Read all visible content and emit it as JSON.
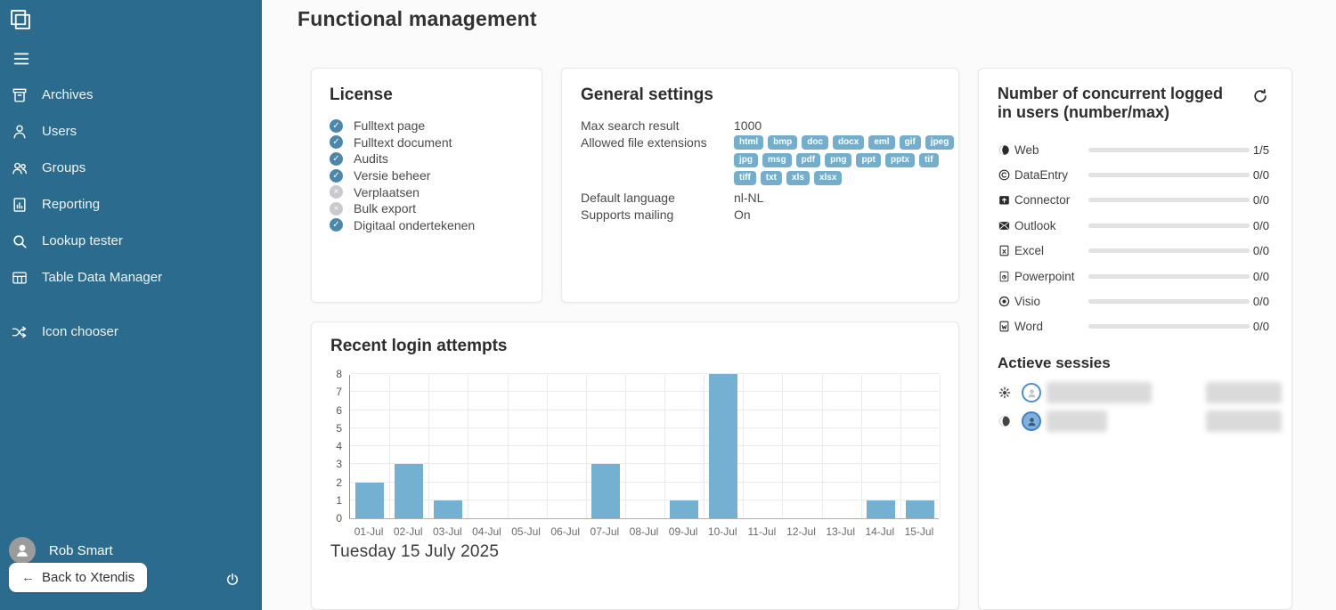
{
  "app": {
    "title": "Functional management"
  },
  "sidebar": {
    "menu": [
      {
        "id": "archives",
        "label": "Archives",
        "icon": "archive"
      },
      {
        "id": "users",
        "label": "Users",
        "icon": "user"
      },
      {
        "id": "groups",
        "label": "Groups",
        "icon": "group"
      },
      {
        "id": "reporting",
        "label": "Reporting",
        "icon": "report"
      },
      {
        "id": "lookup-tester",
        "label": "Lookup tester",
        "icon": "search"
      },
      {
        "id": "table-data-manager",
        "label": "Table Data Manager",
        "icon": "table"
      },
      {
        "id": "icon-chooser",
        "label": "Icon chooser",
        "icon": "shuffle",
        "gap_before": true
      }
    ],
    "user_name": "Rob Smart",
    "back_button_label": "Back to Xtendis",
    "back_button_arrow": "←"
  },
  "license": {
    "title": "License",
    "items": [
      {
        "label": "Fulltext page",
        "enabled": true
      },
      {
        "label": "Fulltext document",
        "enabled": true
      },
      {
        "label": "Audits",
        "enabled": true
      },
      {
        "label": "Versie beheer",
        "enabled": true
      },
      {
        "label": "Verplaatsen",
        "enabled": false
      },
      {
        "label": "Bulk export",
        "enabled": false
      },
      {
        "label": "Digitaal ondertekenen",
        "enabled": true
      }
    ]
  },
  "general": {
    "title": "General settings",
    "max_search_label": "Max search result",
    "max_search_value": "1000",
    "extensions_label": "Allowed file extensions",
    "extensions": [
      "html",
      "bmp",
      "doc",
      "docx",
      "eml",
      "gif",
      "jpeg",
      "jpg",
      "msg",
      "pdf",
      "png",
      "ppt",
      "pptx",
      "tif",
      "tiff",
      "txt",
      "xls",
      "xlsx"
    ],
    "language_label": "Default language",
    "language_value": "nl-NL",
    "mailing_label": "Supports mailing",
    "mailing_value": "On"
  },
  "concurrent": {
    "title": "Number of concurrent logged in users (number/max)",
    "rows": [
      {
        "label": "Web",
        "icon": "globe",
        "value": "1/5"
      },
      {
        "label": "DataEntry",
        "icon": "copyright",
        "value": "0/0"
      },
      {
        "label": "Connector",
        "icon": "connector",
        "value": "0/0"
      },
      {
        "label": "Outlook",
        "icon": "outlook",
        "value": "0/0"
      },
      {
        "label": "Excel",
        "icon": "excel",
        "value": "0/0"
      },
      {
        "label": "Powerpoint",
        "icon": "powerpoint",
        "value": "0/0"
      },
      {
        "label": "Visio",
        "icon": "visio",
        "value": "0/0"
      },
      {
        "label": "Word",
        "icon": "word",
        "value": "0/0"
      }
    ]
  },
  "sessions": {
    "title": "Actieve sessies",
    "rows": [
      {
        "icon": "gear",
        "avatar": "outline",
        "redacted": true
      },
      {
        "icon": "globe",
        "avatar": "filled",
        "redacted": true
      }
    ]
  },
  "chart_card": {
    "date_label": "Tuesday 15 July 2025"
  },
  "chart_data": {
    "type": "bar",
    "title": "Recent login attempts",
    "categories": [
      "01-Jul",
      "02-Jul",
      "03-Jul",
      "04-Jul",
      "05-Jul",
      "06-Jul",
      "07-Jul",
      "08-Jul",
      "09-Jul",
      "10-Jul",
      "11-Jul",
      "12-Jul",
      "13-Jul",
      "14-Jul",
      "15-Jul"
    ],
    "values": [
      2,
      3,
      1,
      0,
      0,
      0,
      3,
      0,
      1,
      8,
      0,
      0,
      0,
      1,
      1
    ],
    "xlabel": "",
    "ylabel": "",
    "ylim": [
      0,
      8
    ],
    "ytick_step": 1,
    "grid": true,
    "legend": false,
    "bar_color": "#74b0d1"
  },
  "colors": {
    "sidebar": "#2b6c8e",
    "chart_bar": "#74b0d1",
    "progress_fill": "#4c86a8",
    "badge": "#74aecd",
    "check_on": "#4c87ab",
    "check_off": "#c9c9ce",
    "avatar_ring": "#4a8fd4"
  }
}
